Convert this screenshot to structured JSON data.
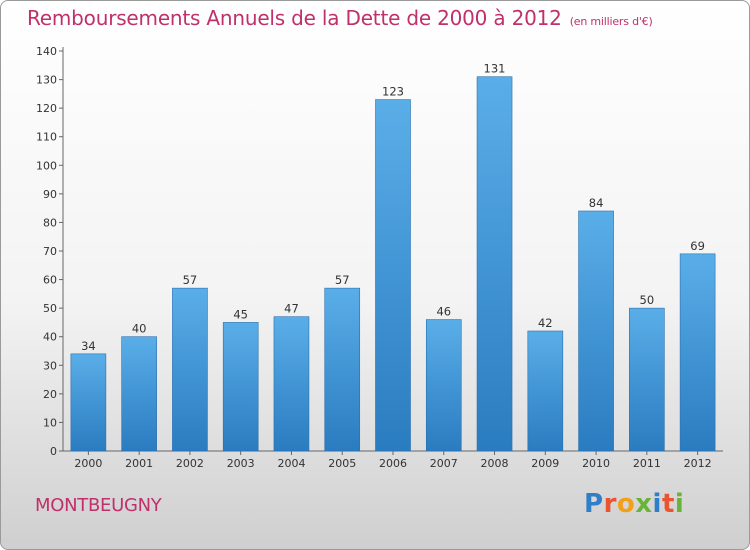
{
  "chart_data": {
    "type": "bar",
    "title": "Remboursements Annuels de la Dette de 2000 à 2012",
    "unit_note": "(en milliers d'€)",
    "categories": [
      "2000",
      "2001",
      "2002",
      "2003",
      "2004",
      "2005",
      "2006",
      "2007",
      "2008",
      "2009",
      "2010",
      "2011",
      "2012"
    ],
    "values": [
      34,
      40,
      57,
      45,
      47,
      57,
      123,
      46,
      131,
      42,
      84,
      50,
      69
    ],
    "xlabel": "",
    "ylabel": "",
    "ylim": [
      0,
      140
    ],
    "yticks": [
      "0",
      "10",
      "20",
      "30",
      "40",
      "50",
      "60",
      "70",
      "80",
      "90",
      "100",
      "110",
      "120",
      "130",
      "140"
    ],
    "grid": false,
    "legend": "none",
    "bar_color_light": "#5aaee8",
    "bar_color_dark": "#2a7cc0"
  },
  "footer": {
    "town": "MONTBEUGNY",
    "logo": [
      "P",
      "r",
      "o",
      "x",
      "i",
      "t",
      "i"
    ],
    "logo_colors": [
      "#2f7fc8",
      "#e9552f",
      "#f2a019",
      "#69b33a",
      "#2f7fc8",
      "#e9552f",
      "#69b33a"
    ]
  },
  "colors": {
    "title": "#c0306a"
  }
}
